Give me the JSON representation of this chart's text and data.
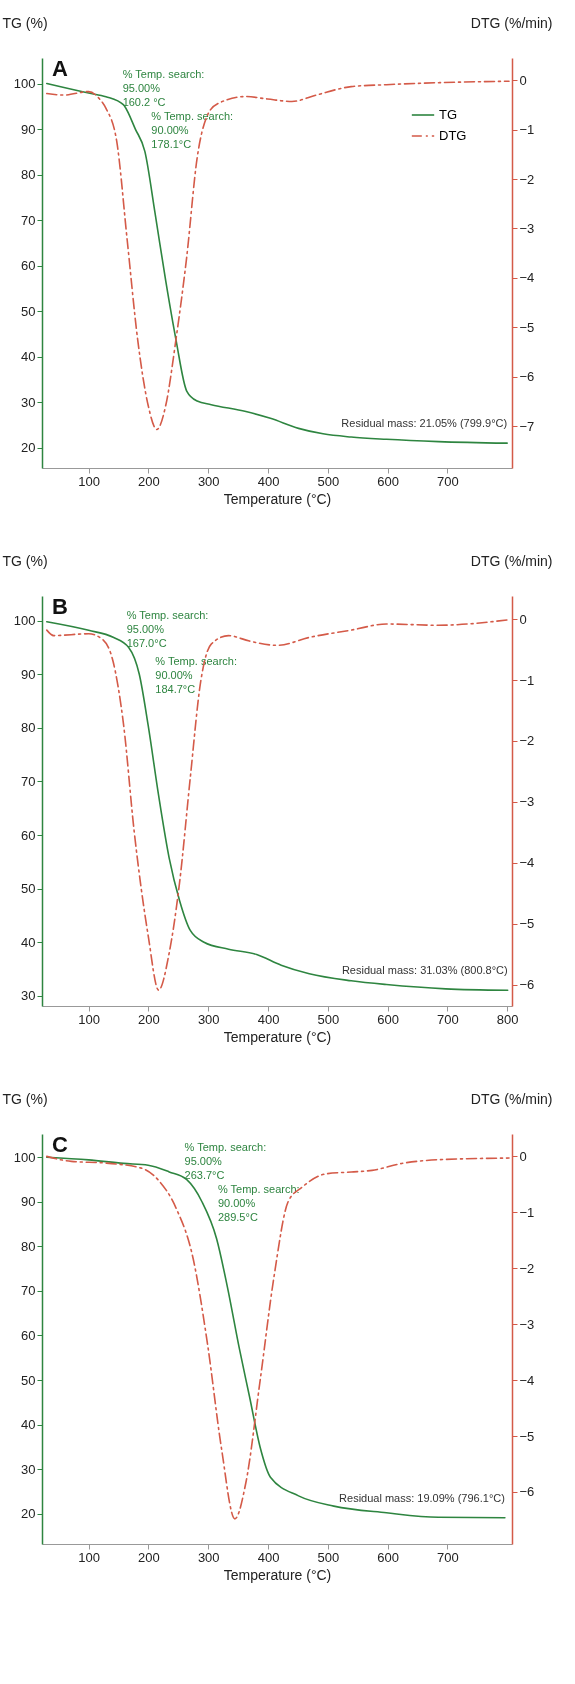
{
  "chart_data": [
    {
      "type": "line",
      "title": "A",
      "xlabel": "Temperature (°C)",
      "ylabel": "TG (%)",
      "y2label": "DTG (%/min)",
      "xlim": [
        22,
        808
      ],
      "xticks": [
        100,
        200,
        300,
        400,
        500,
        600,
        700
      ],
      "ylim": [
        15.6,
        105.6
      ],
      "yticks": [
        20,
        30,
        40,
        50,
        60,
        70,
        80,
        90,
        100
      ],
      "y2lim": [
        -7.85,
        0.45
      ],
      "y2ticks": [
        0,
        -1,
        -2,
        -3,
        -4,
        -5,
        -6,
        -7
      ],
      "legend": "top right",
      "series": [
        {
          "name": "TG",
          "color": "#2e8540",
          "line_style": "solid",
          "x": [
            30,
            100,
            129,
            158.5,
            160.2,
            178.1,
            194,
            211,
            229,
            246,
            264,
            281.5,
            305,
            363,
            404,
            451,
            492,
            539,
            598,
            685,
            799.9
          ],
          "values": [
            100,
            97.9,
            97.1,
            95.3,
            95,
            90,
            85.1,
            71.6,
            56.6,
            43.8,
            32.5,
            30.3,
            29.5,
            28,
            26.5,
            24.3,
            23.1,
            22.4,
            21.9,
            21.4,
            21.05
          ]
        },
        {
          "name": "DTG",
          "color": "#d45a48",
          "line_style": "dashed",
          "axis": "y2",
          "x": [
            30,
            59,
            100,
            117.6,
            129,
            147,
            164.5,
            182,
            199.5,
            214,
            229,
            246,
            264,
            281.5,
            299,
            316.6,
            363,
            399,
            440,
            480.6,
            539,
            598,
            685,
            803
          ],
          "values": [
            -0.27,
            -0.3,
            -0.23,
            -0.37,
            -0.57,
            -1.24,
            -3.24,
            -5.25,
            -6.58,
            -7.07,
            -6.58,
            -5.25,
            -3.58,
            -1.57,
            -0.7,
            -0.47,
            -0.33,
            -0.38,
            -0.43,
            -0.3,
            -0.13,
            -0.09,
            -0.05,
            -0.02
          ]
        }
      ],
      "annotations": [
        {
          "text": "% Temp. search:\n95.00%\n160.2 °C",
          "x": 160.2,
          "y": 95
        },
        {
          "text": "% Temp. search:\n90.00%\n178.1°C",
          "x": 178.1,
          "y": 90
        },
        {
          "text": "Residual mass: 21.05% (799.9°C)",
          "x": 799.9,
          "y": 21.05
        }
      ]
    },
    {
      "type": "line",
      "title": "B",
      "xlabel": "Temperature (°C)",
      "ylabel": "TG (%)",
      "y2label": "DTG (%/min)",
      "xlim": [
        22,
        808
      ],
      "xticks": [
        100,
        200,
        300,
        400,
        500,
        600,
        700,
        800
      ],
      "ylim": [
        28.1,
        104.6
      ],
      "yticks": [
        30,
        40,
        50,
        60,
        70,
        80,
        90,
        100
      ],
      "y2lim": [
        -6.35,
        0.38
      ],
      "y2ticks": [
        0,
        -1,
        -2,
        -3,
        -4,
        -5,
        -6
      ],
      "legend": "top right",
      "series": [
        {
          "name": "TG",
          "color": "#2e8540",
          "line_style": "solid",
          "x": [
            30,
            100,
            141,
            167,
            184.7,
            199.5,
            217,
            234.7,
            252,
            270,
            293,
            334,
            381,
            422,
            469,
            539,
            598,
            697,
            800.8
          ],
          "values": [
            99.8,
            98.2,
            96.9,
            95,
            90,
            80.5,
            67.4,
            55.7,
            47.8,
            42.2,
            40,
            38.7,
            37.7,
            35.7,
            34.1,
            32.8,
            32.1,
            31.3,
            31.03
          ]
        },
        {
          "name": "DTG",
          "color": "#d45a48",
          "line_style": "dashed",
          "axis": "y2",
          "x": [
            30,
            41.5,
            100,
            123,
            141,
            158.5,
            176,
            199.5,
            217,
            234.7,
            252,
            270,
            287,
            305,
            334,
            369,
            416,
            469,
            539,
            598,
            685,
            803
          ],
          "values": [
            -0.18,
            -0.27,
            -0.24,
            -0.33,
            -0.7,
            -1.74,
            -3.47,
            -5.19,
            -6.09,
            -5.48,
            -4.33,
            -2.6,
            -1.05,
            -0.41,
            -0.27,
            -0.36,
            -0.43,
            -0.3,
            -0.18,
            -0.08,
            -0.1,
            -0.01
          ]
        }
      ],
      "annotations": [
        {
          "text": "% Temp. search:\n95.00%\n167.0°C",
          "x": 167,
          "y": 95
        },
        {
          "text": "% Temp. search:\n90.00%\n184.7°C",
          "x": 184.7,
          "y": 90
        },
        {
          "text": "Residual mass: 31.03% (800.8°C)",
          "x": 800.8,
          "y": 31.03
        }
      ]
    },
    {
      "type": "line",
      "title": "C",
      "xlabel": "Temperature (°C)",
      "ylabel": "TG (%)",
      "y2label": "DTG (%/min)",
      "xlim": [
        22,
        808
      ],
      "xticks": [
        100,
        200,
        300,
        400,
        500,
        600,
        700
      ],
      "ylim": [
        13.2,
        105.2
      ],
      "yticks": [
        20,
        30,
        40,
        50,
        60,
        70,
        80,
        90,
        100
      ],
      "y2lim": [
        -6.93,
        0.4
      ],
      "y2ticks": [
        0,
        -1,
        -2,
        -3,
        -4,
        -5,
        -6
      ],
      "legend": "top right",
      "series": [
        {
          "name": "TG",
          "color": "#2e8540",
          "line_style": "solid",
          "x": [
            30,
            100,
            158.5,
            199.5,
            234.7,
            263.7,
            289.5,
            314,
            332,
            352,
            369,
            387,
            404,
            451,
            510,
            598,
            685,
            796.1
          ],
          "values": [
            100,
            99.4,
            98.6,
            98.2,
            96.7,
            95,
            90,
            81.7,
            70.9,
            57.1,
            46.3,
            34.8,
            28.2,
            24,
            21.7,
            20.2,
            19.2,
            19.09
          ]
        },
        {
          "name": "DTG",
          "color": "#d45a48",
          "line_style": "dashed",
          "axis": "y2",
          "x": [
            30,
            71,
            129,
            188,
            217,
            246,
            275,
            299,
            322,
            344.5,
            363,
            387,
            410,
            434,
            457,
            498,
            539,
            574,
            627,
            685,
            803
          ],
          "values": [
            0,
            -0.09,
            -0.12,
            -0.21,
            -0.43,
            -0.92,
            -1.84,
            -3.37,
            -5.21,
            -6.48,
            -5.83,
            -3.99,
            -2.15,
            -0.8,
            -0.55,
            -0.31,
            -0.28,
            -0.25,
            -0.12,
            -0.06,
            -0.03
          ]
        }
      ],
      "annotations": [
        {
          "text": "% Temp. search:\n95.00%\n263.7°C",
          "x": 263.7,
          "y": 95
        },
        {
          "text": "% Temp. search:\n90.00%\n289.5°C",
          "x": 289.5,
          "y": 90
        },
        {
          "text": "Residual mass: 19.09% (796.1°C)",
          "x": 796.1,
          "y": 19.09
        }
      ]
    }
  ]
}
